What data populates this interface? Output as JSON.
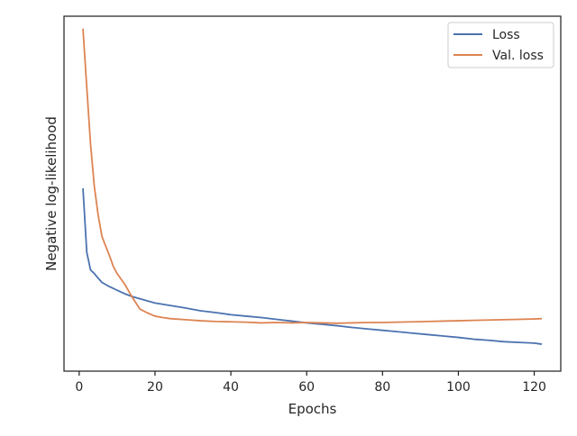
{
  "chart_data": {
    "type": "line",
    "xlabel": "Epochs",
    "ylabel": "Negative log-likelihood",
    "xlim": [
      -4,
      127
    ],
    "ylim": [
      0,
      1
    ],
    "y_ticks_shown": false,
    "grid": false,
    "legend_position": "top-right",
    "x_ticks": [
      0,
      20,
      40,
      60,
      80,
      100,
      120
    ],
    "x_tick_labels": [
      "0",
      "20",
      "40",
      "60",
      "80",
      "100",
      "120"
    ],
    "series": [
      {
        "name": "Loss",
        "color": "#4c72b0",
        "x": [
          1,
          2,
          3,
          4,
          5,
          6,
          8,
          10,
          12,
          14,
          16,
          18,
          20,
          24,
          28,
          32,
          36,
          40,
          44,
          48,
          52,
          56,
          60,
          64,
          68,
          72,
          76,
          80,
          84,
          88,
          92,
          96,
          100,
          104,
          108,
          112,
          116,
          120,
          122
        ],
        "y": [
          0.515,
          0.335,
          0.285,
          0.275,
          0.262,
          0.25,
          0.238,
          0.228,
          0.218,
          0.21,
          0.204,
          0.198,
          0.192,
          0.185,
          0.178,
          0.17,
          0.165,
          0.159,
          0.155,
          0.151,
          0.146,
          0.141,
          0.136,
          0.132,
          0.128,
          0.123,
          0.119,
          0.115,
          0.111,
          0.107,
          0.103,
          0.099,
          0.095,
          0.09,
          0.087,
          0.083,
          0.081,
          0.079,
          0.076
        ]
      },
      {
        "name": "Val. loss",
        "color": "#dd8452",
        "x": [
          1,
          2,
          3,
          4,
          5,
          6,
          7,
          8,
          9,
          10,
          12,
          14,
          16,
          18,
          20,
          22,
          24,
          28,
          32,
          36,
          40,
          44,
          48,
          52,
          56,
          60,
          64,
          68,
          72,
          76,
          80,
          84,
          88,
          92,
          96,
          100,
          104,
          108,
          112,
          116,
          120,
          122
        ],
        "y": [
          0.965,
          0.8,
          0.64,
          0.52,
          0.44,
          0.38,
          0.352,
          0.325,
          0.295,
          0.275,
          0.245,
          0.208,
          0.175,
          0.164,
          0.155,
          0.151,
          0.148,
          0.145,
          0.142,
          0.14,
          0.139,
          0.138,
          0.136,
          0.137,
          0.136,
          0.137,
          0.136,
          0.135,
          0.136,
          0.137,
          0.137,
          0.138,
          0.139,
          0.14,
          0.141,
          0.142,
          0.143,
          0.144,
          0.145,
          0.146,
          0.147,
          0.148
        ]
      }
    ]
  }
}
